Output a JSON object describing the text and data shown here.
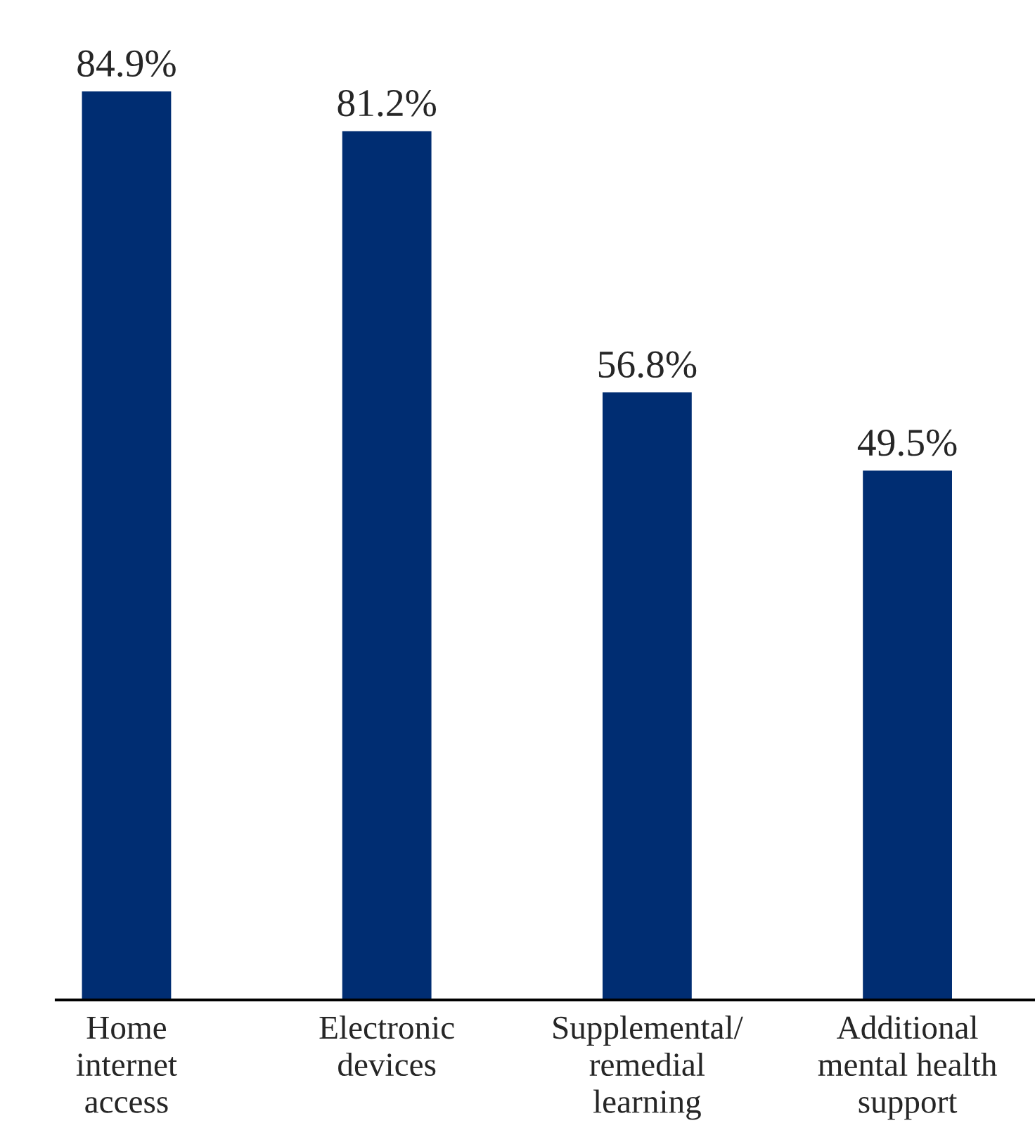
{
  "chart_data": {
    "type": "bar",
    "categories": [
      "Home\ninternet\naccess",
      "Electronic\ndevices",
      "Supplemental/\nremedial\nlearning",
      "Additional\nmental health\nsupport"
    ],
    "values": [
      84.9,
      81.2,
      56.8,
      49.5
    ],
    "value_labels": [
      "84.9%",
      "81.2%",
      "56.8%",
      "49.5%"
    ],
    "color": "#002d72",
    "grid": false,
    "legend": false
  }
}
